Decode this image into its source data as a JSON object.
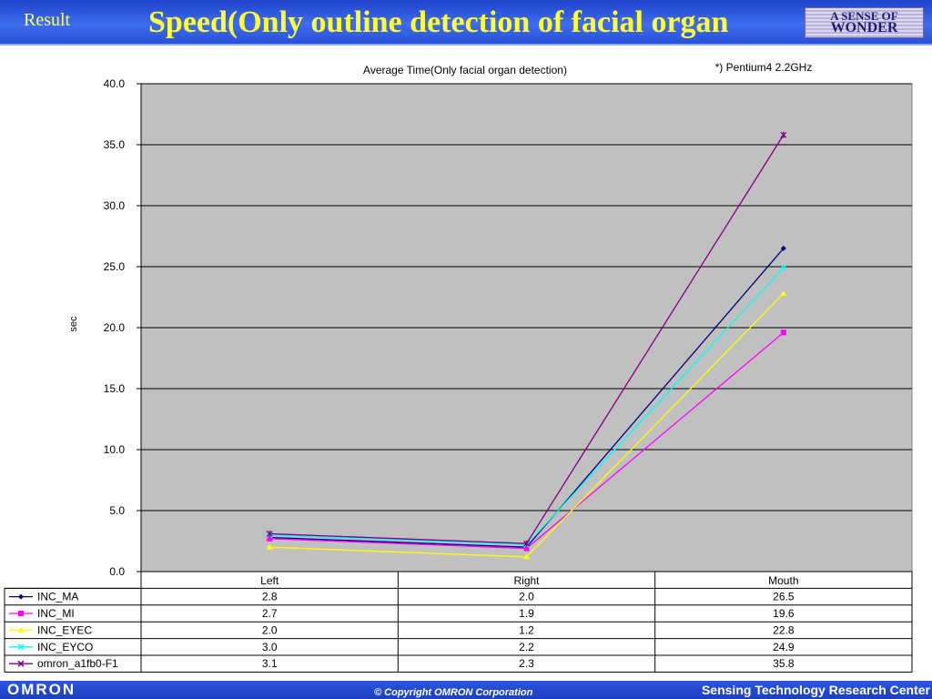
{
  "header": {
    "tag": "Result",
    "title": "Speed(Only outline detection of facial organ",
    "logo_line1": "A SENSE OF",
    "logo_line2": "WONDER"
  },
  "chart_data": {
    "type": "line",
    "title": "Average Time(Only facial organ detection)",
    "annotation": "*) Pentium4 2.2GHz",
    "ylabel": "sec",
    "xlabel": "",
    "ylim": [
      0,
      40
    ],
    "yticks": [
      "0.0",
      "5.0",
      "10.0",
      "15.0",
      "20.0",
      "25.0",
      "30.0",
      "35.0",
      "40.0"
    ],
    "grid": true,
    "categories": [
      "Left",
      "Right",
      "Mouth"
    ],
    "series": [
      {
        "name": "INC_MA",
        "color": "#000080",
        "marker": "diamond",
        "values": [
          2.8,
          2.0,
          26.5
        ],
        "labels": [
          "2.8",
          "2.0",
          "26.5"
        ]
      },
      {
        "name": "INC_MI",
        "color": "#ff00ff",
        "marker": "square",
        "values": [
          2.7,
          1.9,
          19.6
        ],
        "labels": [
          "2.7",
          "1.9",
          "19.6"
        ]
      },
      {
        "name": "INC_EYEC",
        "color": "#ffff00",
        "marker": "triangle",
        "values": [
          2.0,
          1.2,
          22.8
        ],
        "labels": [
          "2.0",
          "1.2",
          "22.8"
        ]
      },
      {
        "name": "INC_EYCO",
        "color": "#00ffff",
        "marker": "x",
        "values": [
          3.0,
          2.2,
          24.9
        ],
        "labels": [
          "3.0",
          "2.2",
          "24.9"
        ]
      },
      {
        "name": "omron_a1fb0-F1",
        "color": "#800080",
        "marker": "star",
        "values": [
          3.1,
          2.3,
          35.8
        ],
        "labels": [
          "3.1",
          "2.3",
          "35.8"
        ]
      }
    ],
    "plot_bg": "#c0c0c0",
    "table": true
  },
  "footer": {
    "brand": "OMRON",
    "copyright": "© Copyright OMRON Corporation",
    "center": "Sensing Technology Research Center"
  }
}
